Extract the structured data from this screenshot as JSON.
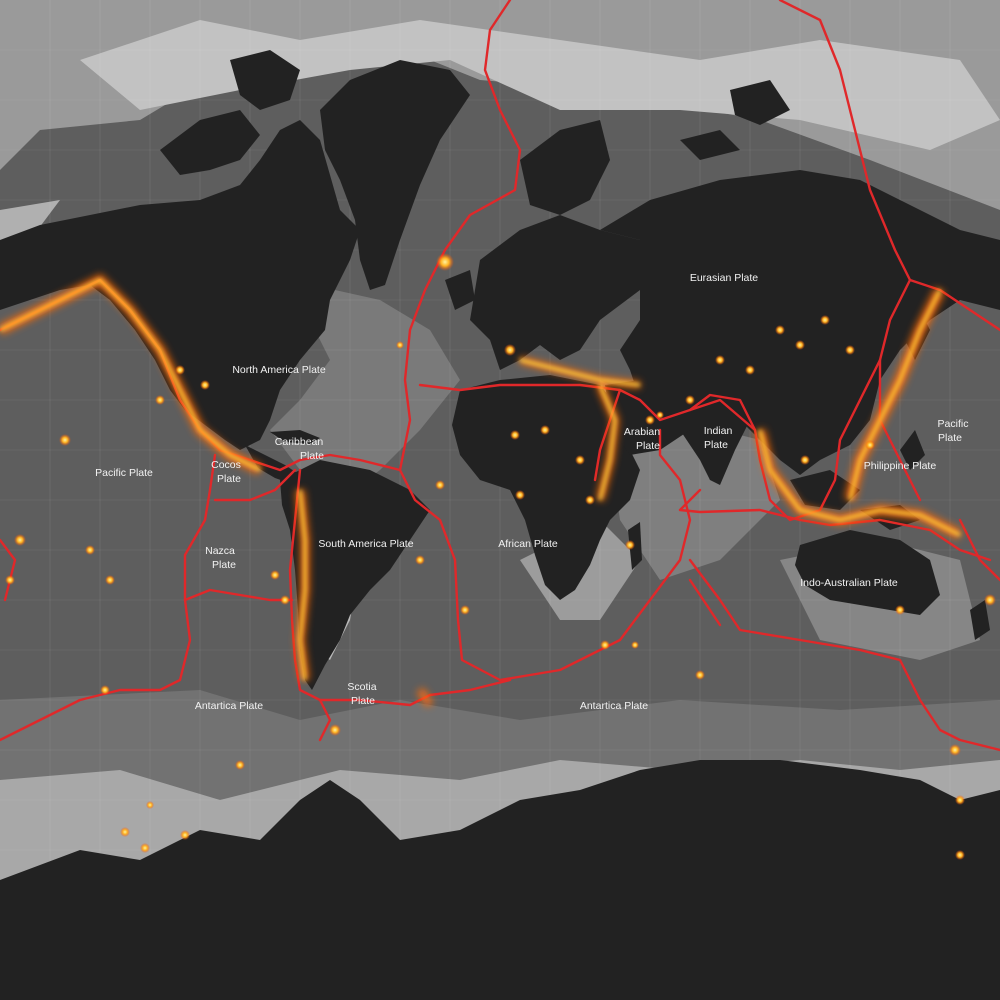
{
  "map": {
    "plates": [
      {
        "id": "eurasian",
        "name": "Eurasian Plate"
      },
      {
        "id": "north-america",
        "name": "North America Plate"
      },
      {
        "id": "pacific-west",
        "name": "Pacific Plate"
      },
      {
        "id": "pacific-east",
        "name": "Pacific Plate"
      },
      {
        "id": "caribbean",
        "name": "Caribbean Plate"
      },
      {
        "id": "cocos",
        "name": "Cocos Plate"
      },
      {
        "id": "nazca",
        "name": "Nazca Plate"
      },
      {
        "id": "south-america",
        "name": "South America Plate"
      },
      {
        "id": "african",
        "name": "African Plate"
      },
      {
        "id": "arabian",
        "name": "Arabian Plate"
      },
      {
        "id": "indian",
        "name": "Indian Plate"
      },
      {
        "id": "philippine",
        "name": "Philippine Plate"
      },
      {
        "id": "indo-australian",
        "name": "Indo-Australian Plate"
      },
      {
        "id": "scotia",
        "name": "Scotia Plate"
      },
      {
        "id": "antarctica-west",
        "name": "Antartica Plate"
      },
      {
        "id": "antarctica-east",
        "name": "Antartica Plate"
      }
    ],
    "colors": {
      "ocean_deep": "#5a5a5a",
      "ocean_mid": "#7c7c7c",
      "shelf": "#b4b4b4",
      "land": "#222222",
      "boundary": "#e0282a",
      "quake_core": "#ffd23a",
      "quake_glow": "#ff5a0a"
    }
  }
}
